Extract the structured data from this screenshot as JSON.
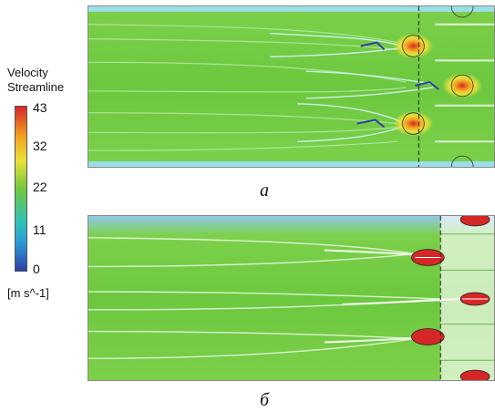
{
  "legend": {
    "title_line1": "Velocity",
    "title_line2": "Streamline",
    "ticks": [
      "43",
      "32",
      "22",
      "11",
      "0"
    ],
    "unit": "[m s^-1]",
    "colors": [
      "#d62728",
      "#f4a11f",
      "#e8e23a",
      "#72c83d",
      "#2fc3b5",
      "#2aa0d8",
      "#2f3fa8"
    ]
  },
  "panels": [
    {
      "caption": "а"
    },
    {
      "caption": "б"
    }
  ]
}
